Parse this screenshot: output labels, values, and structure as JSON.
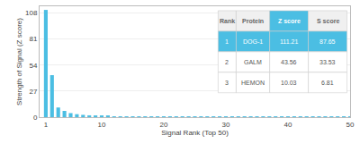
{
  "chart_data": {
    "type": "bar",
    "xlabel": "Signal Rank (Top 50)",
    "ylabel": "Strength of Signal (Z score)",
    "x": [
      1,
      2,
      3,
      4,
      5,
      6,
      7,
      8,
      9,
      10,
      11,
      12,
      13,
      14,
      15,
      16,
      17,
      18,
      19,
      20,
      21,
      22,
      23,
      24,
      25,
      26,
      27,
      28,
      29,
      30,
      31,
      32,
      33,
      34,
      35,
      36,
      37,
      38,
      39,
      40,
      41,
      42,
      43,
      44,
      45,
      46,
      47,
      48,
      49,
      50
    ],
    "values": [
      111.21,
      43.56,
      10.03,
      6.5,
      4.2,
      3.1,
      2.4,
      1.9,
      1.5,
      1.2,
      1.0,
      0.9,
      0.8,
      0.7,
      0.65,
      0.6,
      0.55,
      0.5,
      0.48,
      0.45,
      0.43,
      0.41,
      0.39,
      0.37,
      0.35,
      0.33,
      0.31,
      0.3,
      0.29,
      0.28,
      0.27,
      0.26,
      0.25,
      0.24,
      0.23,
      0.22,
      0.21,
      0.2,
      0.19,
      0.18,
      0.17,
      0.16,
      0.15,
      0.14,
      0.13,
      0.12,
      0.11,
      0.1,
      0.09,
      0.08
    ],
    "color": "#4bbee3",
    "xlim": [
      0,
      50
    ],
    "ylim": [
      0,
      115
    ],
    "xticks": [
      1,
      10,
      20,
      30,
      40,
      50
    ],
    "yticks": [
      0,
      27,
      54,
      81,
      108
    ],
    "grid": true,
    "table": {
      "headers": [
        "Rank",
        "Protein",
        "Z score",
        "S score"
      ],
      "rows": [
        [
          "1",
          "DOG-1",
          "111.21",
          "87.65"
        ],
        [
          "2",
          "GALM",
          "43.56",
          "33.53"
        ],
        [
          "3",
          "HEMON",
          "10.03",
          "6.81"
        ]
      ]
    }
  }
}
